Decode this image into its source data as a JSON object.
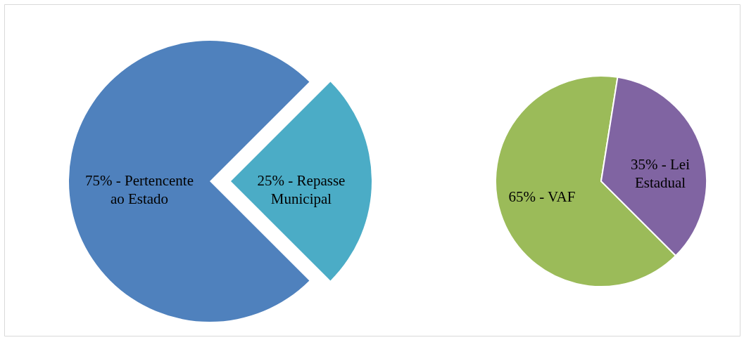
{
  "chart_data": [
    {
      "type": "pie",
      "values": [
        75,
        25
      ],
      "colors": [
        "#4f81bd",
        "#4bacc6"
      ],
      "value_labels": [
        "75% - Pertencente ao Estado",
        "25% - Repasse Municipal"
      ]
    },
    {
      "type": "pie",
      "values": [
        65,
        35
      ],
      "colors": [
        "#9bbb59",
        "#8064a2"
      ],
      "value_labels": [
        "65% - VAF",
        "35% - Lei Estadual"
      ]
    }
  ]
}
